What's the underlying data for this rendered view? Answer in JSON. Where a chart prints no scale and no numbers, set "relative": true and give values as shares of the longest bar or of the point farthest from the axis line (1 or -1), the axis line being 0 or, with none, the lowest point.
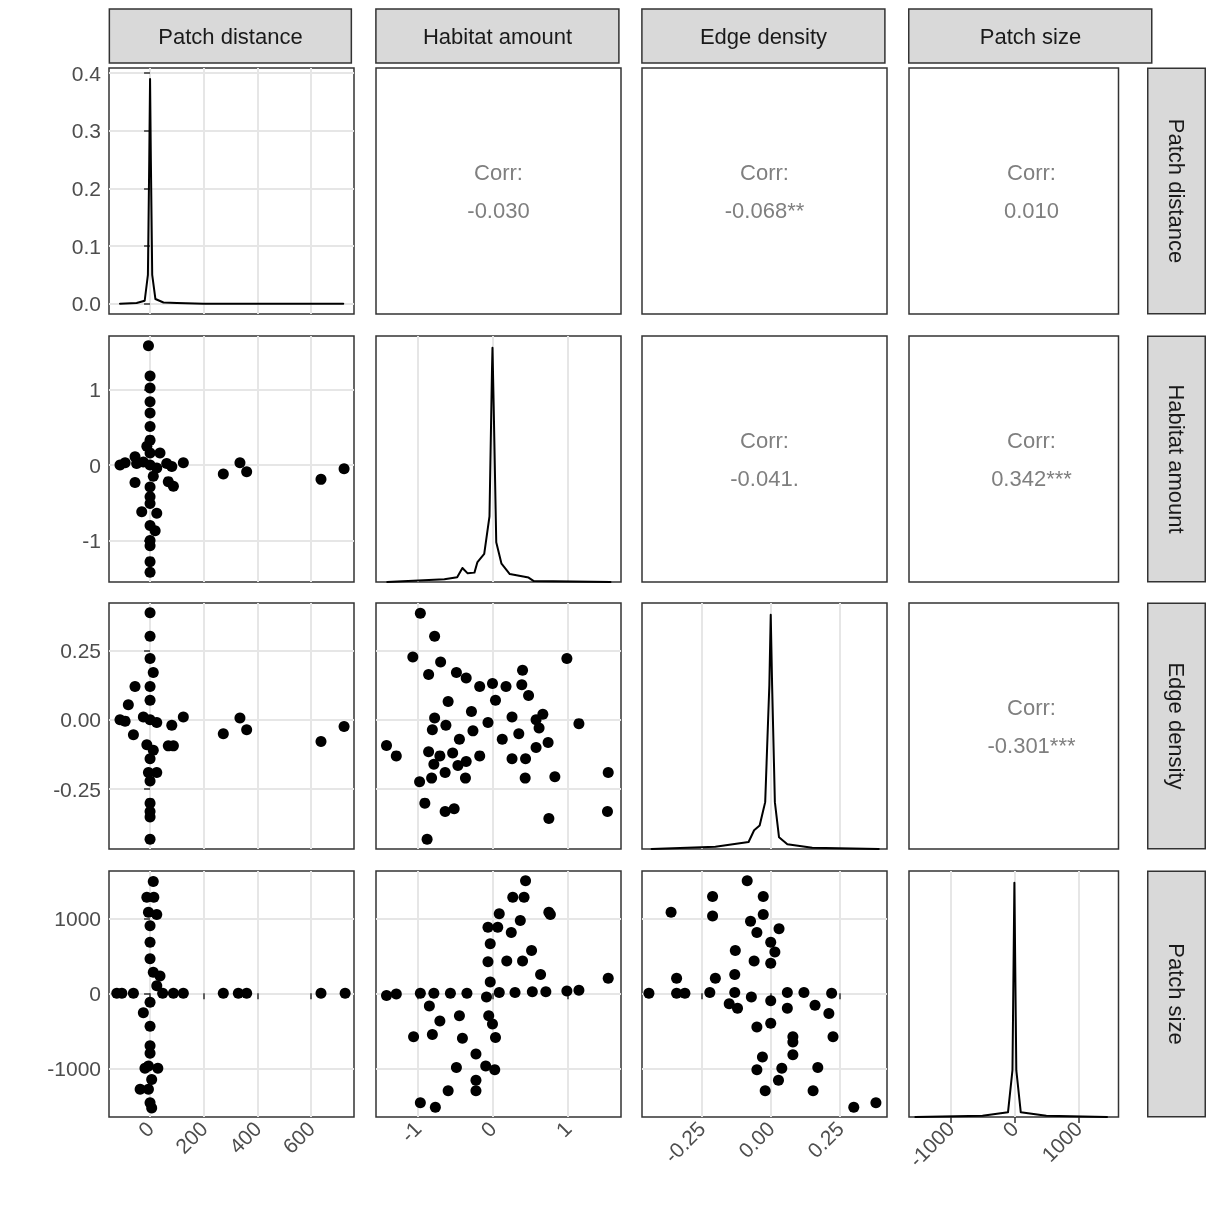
{
  "chart_data": [
    {
      "type": "line",
      "title": "Patch distance",
      "color": "#000000",
      "x": [
        -112,
        -50,
        -20,
        -8,
        -3,
        0,
        3,
        8,
        20,
        50,
        100,
        200,
        400,
        720
      ],
      "values": [
        0,
        0.001,
        0.005,
        0.05,
        0.25,
        0.39,
        0.25,
        0.05,
        0.008,
        0.002,
        0.001,
        0,
        0,
        0
      ],
      "xlim": [
        -153,
        760
      ],
      "xticks": [
        0,
        200,
        400,
        600
      ],
      "ylim": [
        -0.018,
        0.409
      ],
      "yticks": [
        {
          "value": 0,
          "label": "0.0"
        },
        0.1,
        0.2,
        0.3,
        0.4
      ],
      "grid": true,
      "tick_labels": "y"
    },
    {
      "type": "other",
      "title": "Habitat amount",
      "annotations": [
        "Corr:",
        "-0.030"
      ]
    },
    {
      "type": "other",
      "title": "Edge density",
      "annotations": [
        "Corr:",
        "-0.068**"
      ]
    },
    {
      "type": "other",
      "title": "Patch size",
      "y2label": "Patch distance",
      "annotations": [
        "Corr:",
        "0.010"
      ]
    },
    {
      "type": "scatter",
      "color": "#000000",
      "marker": "circle",
      "x": [
        -6,
        0,
        0,
        0,
        0,
        0,
        0,
        0,
        -56,
        -112,
        -93,
        124,
        81,
        37,
        273,
        335,
        360,
        637,
        723,
        -56,
        68,
        87,
        0,
        -31,
        25,
        19,
        0,
        0,
        0,
        0,
        0,
        0,
        0,
        0,
        -25,
        25,
        -50,
        62,
        12,
        -12
      ],
      "values": [
        1.58,
        1.18,
        1.02,
        0.84,
        0.69,
        0.51,
        0.33,
        0.16,
        0.11,
        0,
        0.03,
        0.03,
        -0.02,
        0.16,
        -0.12,
        0.03,
        -0.09,
        -0.19,
        -0.05,
        -0.23,
        -0.22,
        -0.28,
        -0.29,
        -0.62,
        -0.64,
        -0.87,
        -1.0,
        -1.07,
        -1.28,
        -1.42,
        -0.42,
        -0.51,
        -0.8,
        0,
        0.04,
        -0.04,
        0.02,
        0.02,
        -0.15,
        0.25
      ],
      "xlim": [
        -153,
        760
      ],
      "xticks": [
        0,
        200,
        400,
        600
      ],
      "ylim": [
        -1.55,
        1.71
      ],
      "yticks": [
        -1,
        0,
        1
      ],
      "grid": true,
      "tick_labels": "y"
    },
    {
      "type": "line",
      "relative": true,
      "color": "#000000",
      "x": [
        -1.4,
        -0.64,
        -0.47,
        -0.4,
        -0.33,
        -0.24,
        -0.2,
        -0.11,
        -0.04,
        -0.007,
        0,
        0.016,
        0.05,
        0.12,
        0.23,
        0.48,
        0.55,
        1.57
      ],
      "values": [
        0,
        0.012,
        0.02,
        0.06,
        0.037,
        0.04,
        0.085,
        0.12,
        0.28,
        0.9,
        1,
        0.75,
        0.17,
        0.078,
        0.034,
        0.019,
        0.004,
        0
      ],
      "xlim": [
        -1.55,
        1.71
      ],
      "xticks": [
        -1,
        0,
        1
      ],
      "grid": "x",
      "tick_labels": false
    },
    {
      "type": "other",
      "annotations": [
        "Corr:",
        "-0.041."
      ]
    },
    {
      "type": "other",
      "y2label": "Habitat amount",
      "annotations": [
        "Corr:",
        "0.342***"
      ]
    },
    {
      "type": "scatter",
      "color": "#000000",
      "marker": "circle",
      "x": [
        0,
        0,
        0,
        12,
        -56,
        -81,
        -112,
        -93,
        124,
        81,
        273,
        335,
        360,
        637,
        723,
        -62,
        68,
        87,
        -6,
        25,
        0,
        0,
        0,
        0,
        0,
        0,
        -25,
        25,
        -12,
        12,
        0,
        0,
        0
      ],
      "values": [
        0.385,
        0.3,
        0.22,
        0.17,
        0.12,
        0.054,
        0,
        -0.005,
        0.01,
        -0.02,
        -0.05,
        0.006,
        -0.036,
        -0.078,
        -0.024,
        -0.054,
        -0.094,
        -0.094,
        -0.19,
        -0.19,
        -0.22,
        -0.3,
        -0.33,
        -0.35,
        -0.43,
        0,
        0.01,
        -0.01,
        -0.09,
        -0.11,
        -0.14,
        0.07,
        0.12
      ],
      "xlim": [
        -153,
        760
      ],
      "xticks": [
        0,
        200,
        400,
        600
      ],
      "ylim": [
        -0.465,
        0.42
      ],
      "yticks": [
        -0.25,
        {
          "value": 0,
          "label": "0.00"
        },
        0.25
      ],
      "grid": true,
      "tick_labels": "y"
    },
    {
      "type": "scatter",
      "color": "#000000",
      "marker": "circle",
      "x": [
        -0.96,
        -0.77,
        -1.06,
        0.99,
        -0.69,
        -0.85,
        0.4,
        0.39,
        0.48,
        1.15,
        -1.41,
        -1.28,
        1.54,
        1.53,
        0.75,
        0.83,
        0.435,
        0.74,
        -0.97,
        -0.81,
        -0.36,
        -0.9,
        -0.63,
        -0.51,
        -0.87,
        -0.85,
        -0.7,
        -0.78,
        -0.63,
        -0.46,
        -0.8,
        -0.77,
        -0.59,
        -0.48,
        -0.35,
        -0.17,
        0,
        0.18,
        0.04,
        -0.28,
        -0.06,
        0.26,
        0.35,
        0.58,
        0.67,
        0.62,
        0.58,
        0.44,
        0.26,
        -0.17,
        -0.35,
        -0.53,
        -0.44,
        -0.62,
        -0.26,
        0.13
      ],
      "values": [
        0.383,
        0.3,
        0.226,
        0.22,
        0.208,
        0.163,
        0.178,
        0.126,
        0.087,
        -0.014,
        -0.093,
        -0.13,
        -0.19,
        -0.33,
        -0.355,
        -0.205,
        -0.21,
        -0.082,
        -0.223,
        -0.21,
        -0.21,
        -0.3,
        -0.33,
        -0.32,
        -0.43,
        -0.115,
        -0.13,
        -0.16,
        -0.19,
        -0.165,
        -0.036,
        0.006,
        0.066,
        0.17,
        0.15,
        0.12,
        0.13,
        0.12,
        0.07,
        0.03,
        -0.01,
        0.01,
        -0.05,
        0,
        0.02,
        -0.03,
        -0.1,
        -0.14,
        -0.14,
        -0.13,
        -0.15,
        -0.12,
        -0.07,
        -0.02,
        -0.04,
        -0.07
      ],
      "xlim": [
        -1.55,
        1.71
      ],
      "xticks": [
        -1,
        0,
        1
      ],
      "ylim": [
        -0.465,
        0.42
      ],
      "yticks": [
        -0.25,
        0,
        0.25
      ],
      "grid": true,
      "tick_labels": false
    },
    {
      "type": "line",
      "relative": true,
      "color": "#000000",
      "x": [
        -0.43,
        -0.2,
        -0.08,
        -0.06,
        -0.04,
        -0.02,
        -0.005,
        0,
        0.005,
        0.015,
        0.03,
        0.06,
        0.15,
        0.39
      ],
      "values": [
        0,
        0.01,
        0.03,
        0.08,
        0.1,
        0.2,
        0.7,
        1,
        0.7,
        0.2,
        0.05,
        0.02,
        0.005,
        0
      ],
      "xlim": [
        -0.465,
        0.42
      ],
      "xticks": [
        -0.25,
        0,
        0.25
      ],
      "grid": "x",
      "tick_labels": false
    },
    {
      "type": "other",
      "y2label": "Edge density",
      "annotations": [
        "Corr:",
        "-0.301***"
      ]
    },
    {
      "type": "scatter",
      "color": "#000000",
      "marker": "circle",
      "x": [
        12,
        -12,
        14,
        -6,
        25,
        0,
        0,
        0,
        12,
        37,
        -124,
        -105,
        -62,
        47,
        87,
        124,
        273,
        329,
        360,
        637,
        727,
        -25,
        0,
        0,
        -6,
        29,
        -19,
        -37,
        -6,
        6,
        0,
        6,
        0,
        0,
        25
      ],
      "values": [
        1490,
        1280,
        1280,
        1080,
        1050,
        900,
        680,
        460,
        280,
        230,
        0,
        0,
        0,
        0,
        0,
        0,
        0,
        0,
        0,
        0,
        0,
        -260,
        -440,
        -700,
        -970,
        -1000,
        -1000,
        -1280,
        -1280,
        -1150,
        -1460,
        -1530,
        -800,
        -120,
        100
      ],
      "xlim": [
        -153,
        760
      ],
      "xticks": [
        0,
        200,
        400,
        600
      ],
      "ylim": [
        -1650,
        1630
      ],
      "yticks": [
        -1000,
        0,
        1000
      ],
      "grid": true
    },
    {
      "type": "scatter",
      "color": "#000000",
      "marker": "circle",
      "x": [
        0.44,
        0.27,
        0.42,
        0.75,
        0.77,
        0.09,
        0.37,
        -0.06,
        0.07,
        0.25,
        -0.03,
        0.52,
        0.4,
        -0.06,
        0.19,
        0.64,
        1.54,
        1.15,
        0.99,
        -1.41,
        -1.28,
        -0.96,
        -0.78,
        -0.56,
        -0.34,
        0.09,
        0.3,
        0.53,
        0.71,
        -0.84,
        -0.7,
        -0.44,
        -1.05,
        -0.8,
        -0.4,
        0,
        0.04,
        -0.22,
        -0.48,
        0.03,
        -0.09,
        -0.22,
        -0.22,
        -0.59,
        -0.96,
        -0.76,
        -0.05,
        -0.08,
        -0.03
      ],
      "values": [
        1500,
        1280,
        1280,
        1080,
        1050,
        1060,
        970,
        880,
        880,
        810,
        660,
        570,
        430,
        420,
        430,
        250,
        200,
        40,
        30,
        -30,
        -10,
        0,
        0,
        0,
        0,
        10,
        10,
        20,
        20,
        -170,
        -370,
        -300,
        -580,
        -550,
        -600,
        -410,
        -590,
        -810,
        -990,
        -1020,
        -970,
        -1160,
        -1300,
        -1300,
        -1460,
        -1520,
        -300,
        -50,
        150
      ],
      "xlim": [
        -1.55,
        1.71
      ],
      "xticks": [
        -1,
        0,
        1
      ],
      "ylim": [
        -1650,
        1630
      ],
      "yticks": [
        -1000,
        0,
        1000
      ],
      "grid": true,
      "tick_labels": "x"
    },
    {
      "type": "scatter",
      "color": "#000000",
      "marker": "circle",
      "x": [
        -0.085,
        -0.21,
        -0.027,
        -0.36,
        -0.21,
        -0.027,
        -0.073,
        -0.05,
        0.03,
        0,
        -0.128,
        0.015,
        -0.06,
        -0.2,
        -0.34,
        -0.13,
        -0.44,
        -0.34,
        -0.31,
        -0.22,
        -0.13,
        0.06,
        0.12,
        0.22,
        -0.15,
        -0.12,
        0.06,
        0.21,
        0.16,
        0.225,
        0.08,
        0.08,
        -0.05,
        0.08,
        -0.03,
        0.17,
        0.04,
        -0.05,
        0.028,
        -0.02,
        0.153,
        0.3,
        0.38,
        0,
        0,
        0,
        -0.07
      ],
      "values": [
        1500,
        1290,
        1290,
        1080,
        1030,
        1050,
        960,
        810,
        860,
        680,
        570,
        550,
        430,
        200,
        200,
        250,
        0,
        0,
        0,
        10,
        10,
        10,
        10,
        0,
        -140,
        -200,
        -200,
        -270,
        -160,
        -580,
        -580,
        -650,
        -450,
        -820,
        -850,
        -990,
        -1000,
        -1020,
        -1160,
        -1300,
        -1300,
        -1520,
        -1460,
        -400,
        -100,
        400,
        -50
      ],
      "xlim": [
        -0.465,
        0.42
      ],
      "xticks": [
        -0.25,
        {
          "value": 0,
          "label": "0.00"
        },
        0.25
      ],
      "ylim": [
        -1650,
        1630
      ],
      "yticks": [
        -1000,
        0,
        1000
      ],
      "grid": true,
      "tick_labels": "x"
    },
    {
      "type": "line",
      "relative": true,
      "y2label": "Patch size",
      "color": "#000000",
      "x": [
        -1550,
        -500,
        -100,
        -30,
        0,
        30,
        100,
        500,
        1450
      ],
      "values": [
        0,
        0.005,
        0.02,
        0.2,
        1,
        0.2,
        0.02,
        0.005,
        0
      ],
      "xlim": [
        -1650,
        1630
      ],
      "xticks": [
        -1000,
        0,
        1000
      ],
      "grid": "x",
      "tick_labels": "x"
    }
  ]
}
